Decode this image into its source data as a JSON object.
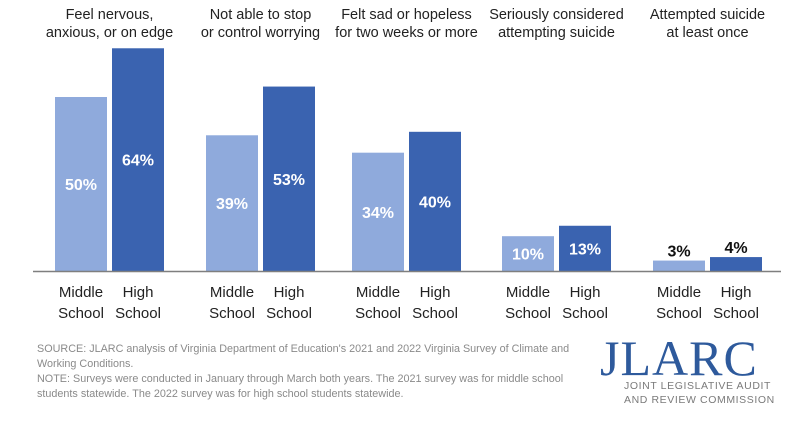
{
  "chart_data": {
    "type": "bar",
    "title": "",
    "xlabel": "",
    "ylabel": "",
    "ylim": [
      0,
      64
    ],
    "grid": false,
    "legend": "none",
    "categories": [
      "Feel nervous, anxious, or on edge",
      "Not able to stop or control worrying",
      "Felt sad or hopeless for two weeks or more",
      "Seriously considered attempting suicide",
      "Attempted suicide at least once"
    ],
    "category_lines": [
      [
        "Feel nervous,",
        "anxious, or on edge"
      ],
      [
        "Not able to stop",
        "or control worrying"
      ],
      [
        "Felt sad or hopeless",
        "for two weeks or more"
      ],
      [
        "Seriously considered",
        "attempting suicide"
      ],
      [
        "Attempted suicide",
        "at least once"
      ]
    ],
    "series": [
      {
        "name": "Middle School",
        "label_lines": [
          "Middle",
          "School"
        ],
        "color": "#8faadc",
        "values": [
          50,
          39,
          34,
          10,
          3
        ]
      },
      {
        "name": "High School",
        "label_lines": [
          "High",
          "School"
        ],
        "color": "#3a63b0",
        "values": [
          64,
          53,
          40,
          13,
          4
        ]
      }
    ],
    "value_suffix": "%"
  },
  "footer": {
    "source": "SOURCE: JLARC analysis of Virginia Department of Education's 2021 and 2022 Virginia Survey of Climate and Working Conditions.",
    "note": "NOTE: Surveys were conducted in January through March both years. The 2021 survey was for middle school students statewide. The 2022 survey was for high school students statewide."
  },
  "logo": {
    "name": "JLARC",
    "line1": "JOINT LEGISLATIVE AUDIT",
    "line2": "AND REVIEW COMMISSION"
  }
}
